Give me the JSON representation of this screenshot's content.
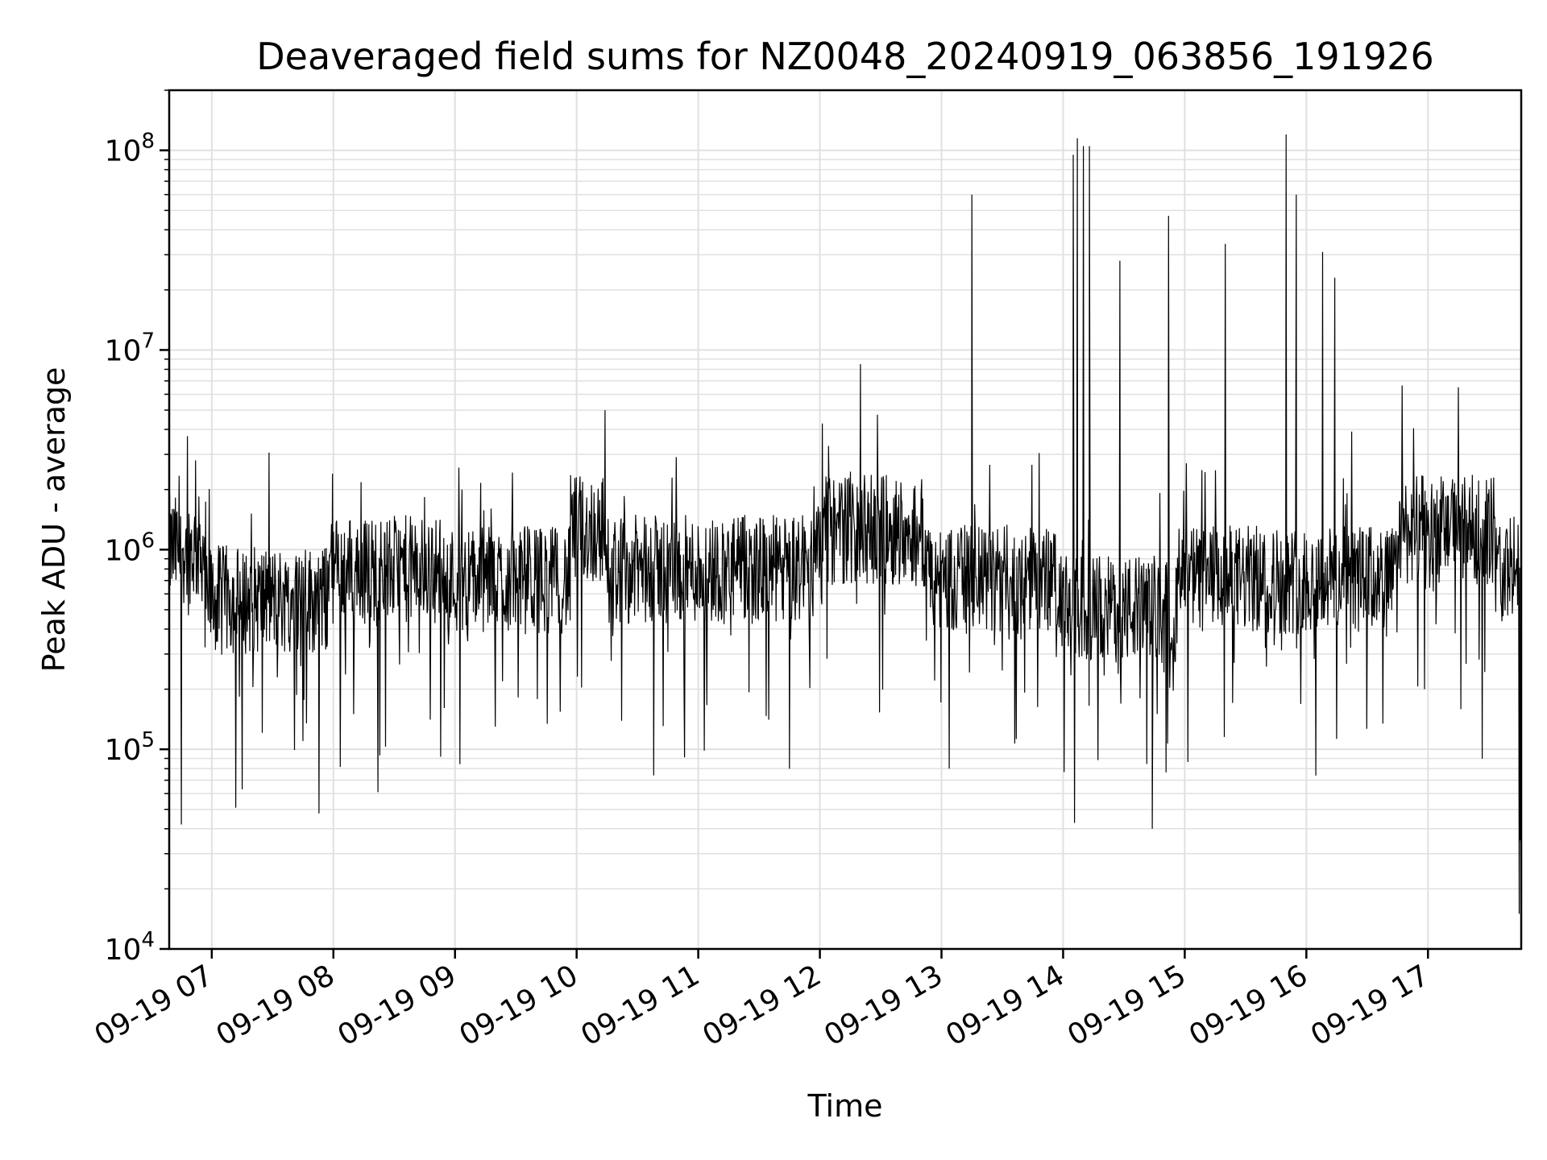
{
  "chart_data": {
    "type": "line",
    "title": "Deaveraged field sums for NZ0048_20240919_063856_191926",
    "xlabel": "Time",
    "ylabel": "Peak ADU - average",
    "yscale": "log",
    "ylim": [
      10000,
      200000000
    ],
    "xlim": [
      "2024-09-19T06:39:00",
      "2024-09-19T17:46:00"
    ],
    "grid": true,
    "line_color": "#000000",
    "grid_color": "#e0e0e0",
    "x_ticks": [
      "2024-09-19T07:00",
      "2024-09-19T08:00",
      "2024-09-19T09:00",
      "2024-09-19T10:00",
      "2024-09-19T11:00",
      "2024-09-19T12:00",
      "2024-09-19T13:00",
      "2024-09-19T14:00",
      "2024-09-19T15:00",
      "2024-09-19T16:00",
      "2024-09-19T17:00"
    ],
    "x_tick_labels": [
      "09-19 07",
      "09-19 08",
      "09-19 09",
      "09-19 10",
      "09-19 11",
      "09-19 12",
      "09-19 13",
      "09-19 14",
      "09-19 15",
      "09-19 16",
      "09-19 17"
    ],
    "y_ticks": [
      {
        "value": 10000,
        "base": "10",
        "exp": "4"
      },
      {
        "value": 100000,
        "base": "10",
        "exp": "5"
      },
      {
        "value": 1000000,
        "base": "10",
        "exp": "6"
      },
      {
        "value": 10000000,
        "base": "10",
        "exp": "7"
      },
      {
        "value": 100000000,
        "base": "10",
        "exp": "8"
      }
    ],
    "series": [
      {
        "values_approx": [
          [
            "2024-09-19T06:40",
            700000
          ],
          [
            "2024-09-19T06:42",
            1500000
          ],
          [
            "2024-09-19T06:45",
            42000
          ],
          [
            "2024-09-19T06:48",
            3700000
          ],
          [
            "2024-09-19T06:52",
            2800000
          ],
          [
            "2024-09-19T07:00",
            900000
          ],
          [
            "2024-09-19T07:10",
            300000
          ],
          [
            "2024-09-19T07:15",
            63000
          ],
          [
            "2024-09-19T07:30",
            600000
          ],
          [
            "2024-09-19T07:45",
            110000
          ],
          [
            "2024-09-19T08:00",
            700000
          ],
          [
            "2024-09-19T08:10",
            150000
          ],
          [
            "2024-09-19T08:22",
            61000
          ],
          [
            "2024-09-19T08:30",
            1200000
          ],
          [
            "2024-09-19T08:50",
            1500000
          ],
          [
            "2024-09-19T09:00",
            800000
          ],
          [
            "2024-09-19T09:20",
            600000
          ],
          [
            "2024-09-19T09:40",
            1000000
          ],
          [
            "2024-09-19T09:55",
            700000
          ],
          [
            "2024-09-19T10:05",
            3000000
          ],
          [
            "2024-09-19T10:14",
            5000000
          ],
          [
            "2024-09-19T10:20",
            700000
          ],
          [
            "2024-09-19T10:38",
            74000
          ],
          [
            "2024-09-19T10:50",
            800000
          ],
          [
            "2024-09-19T11:10",
            1000000
          ],
          [
            "2024-09-19T11:25",
            700000
          ],
          [
            "2024-09-19T11:45",
            80000
          ],
          [
            "2024-09-19T12:00",
            1200000
          ],
          [
            "2024-09-19T12:20",
            8500000
          ],
          [
            "2024-09-19T12:30",
            3000000
          ],
          [
            "2024-09-19T12:45",
            800000
          ],
          [
            "2024-09-19T13:00",
            700000
          ],
          [
            "2024-09-19T13:15",
            60000000
          ],
          [
            "2024-09-19T13:30",
            600000
          ],
          [
            "2024-09-19T13:50",
            800000
          ],
          [
            "2024-09-19T14:05",
            95000000
          ],
          [
            "2024-09-19T14:07",
            115000000
          ],
          [
            "2024-09-19T14:10",
            105000000
          ],
          [
            "2024-09-19T14:13",
            105000000
          ],
          [
            "2024-09-19T14:28",
            28000000
          ],
          [
            "2024-09-19T14:40",
            200000
          ],
          [
            "2024-09-19T14:44",
            40000
          ],
          [
            "2024-09-19T14:52",
            47000000
          ],
          [
            "2024-09-19T15:05",
            900000
          ],
          [
            "2024-09-19T15:20",
            34000000
          ],
          [
            "2024-09-19T15:35",
            600000
          ],
          [
            "2024-09-19T15:50",
            120000000
          ],
          [
            "2024-09-19T15:55",
            60000000
          ],
          [
            "2024-09-19T16:08",
            31000000
          ],
          [
            "2024-09-19T16:14",
            23000000
          ],
          [
            "2024-09-19T16:30",
            600000
          ],
          [
            "2024-09-19T16:45",
            2500000
          ],
          [
            "2024-09-19T17:00",
            3000000
          ],
          [
            "2024-09-19T17:15",
            6500000
          ],
          [
            "2024-09-19T17:30",
            1000000
          ],
          [
            "2024-09-19T17:40",
            300000
          ],
          [
            "2024-09-19T17:45",
            15000
          ]
        ]
      }
    ]
  }
}
